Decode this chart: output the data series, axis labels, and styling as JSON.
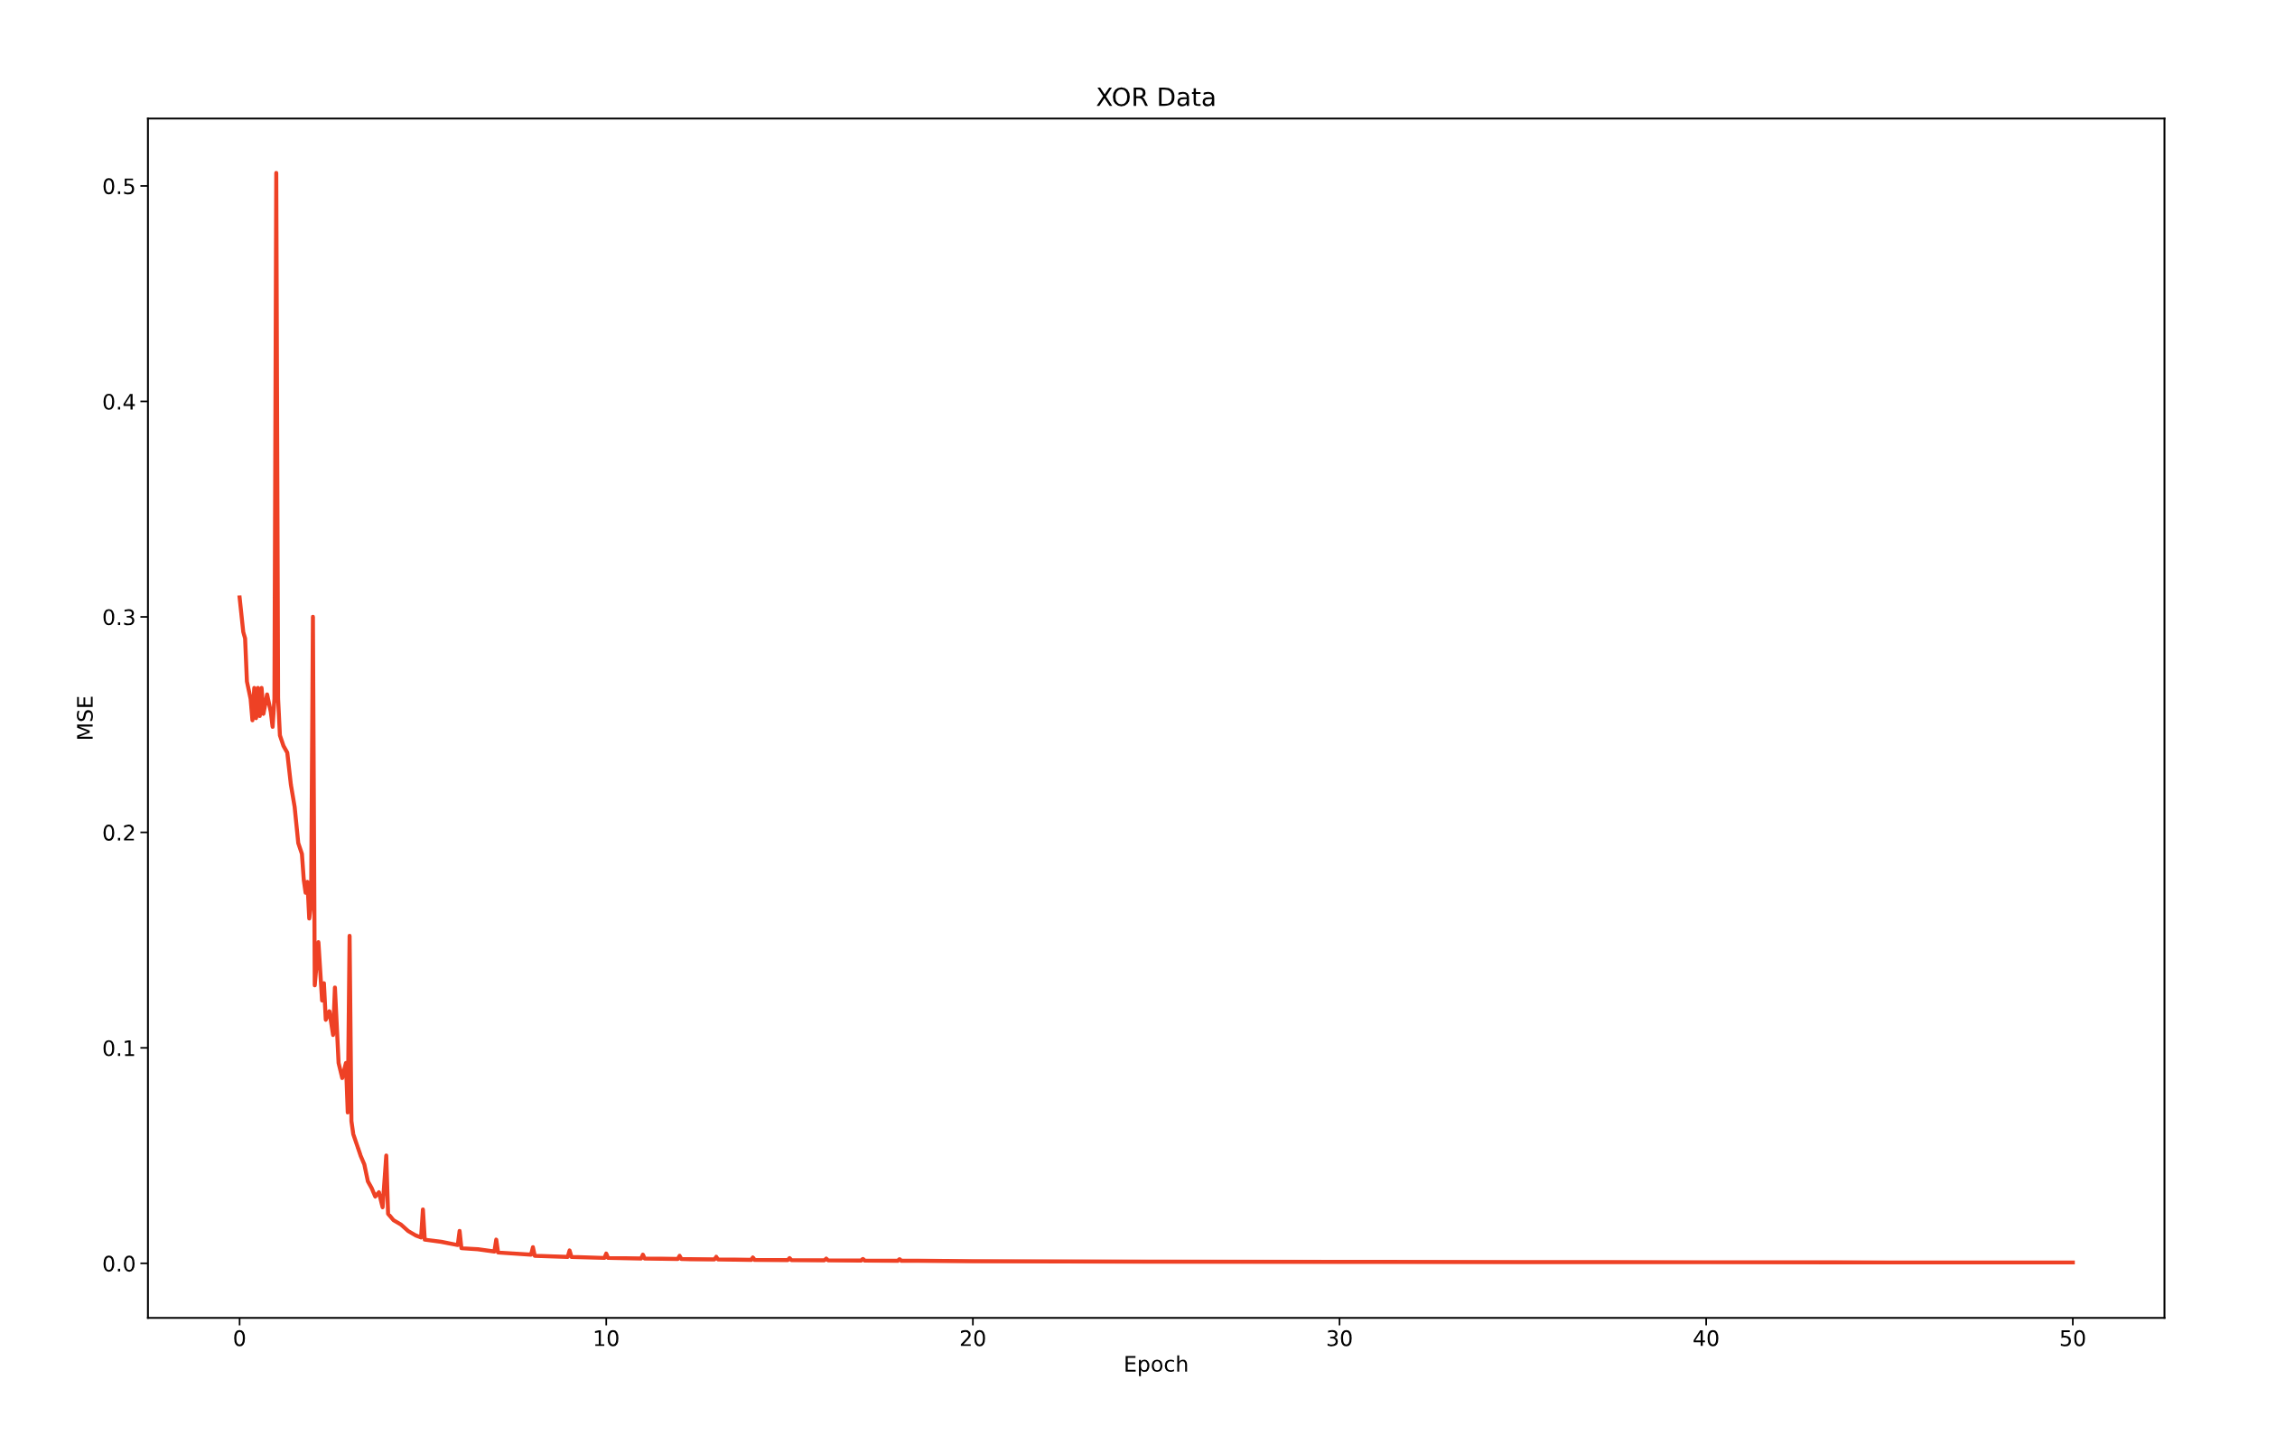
{
  "chart_data": {
    "type": "line",
    "title": "XOR Data",
    "xlabel": "Epoch",
    "ylabel": "MSE",
    "xlim": [
      -2.5,
      52.5
    ],
    "ylim": [
      -0.0253,
      0.5313
    ],
    "xticks": [
      0,
      10,
      20,
      30,
      40,
      50
    ],
    "yticks": [
      {
        "value": 0,
        "label": "0.0"
      },
      0.1,
      0.2,
      0.3,
      0.4,
      0.5
    ],
    "grid": false,
    "marker": "none",
    "line_style": "solid",
    "series": [
      {
        "color": "#ee4125",
        "x": [
          0,
          0.1,
          0.15,
          0.2,
          0.3,
          0.35,
          0.4,
          0.45,
          0.5,
          0.55,
          0.6,
          0.65,
          0.75,
          0.85,
          0.9,
          0.95,
          1.0,
          1.05,
          1.1,
          1.2,
          1.3,
          1.4,
          1.5,
          1.6,
          1.7,
          1.75,
          1.8,
          1.85,
          1.9,
          1.95,
          2.0,
          2.05,
          2.15,
          2.25,
          2.3,
          2.35,
          2.45,
          2.55,
          2.6,
          2.7,
          2.8,
          2.9,
          2.95,
          3.0,
          3.05,
          3.1,
          3.2,
          3.3,
          3.4,
          3.5,
          3.6,
          3.7,
          3.8,
          3.9,
          4.0,
          4.05,
          4.2,
          4.4,
          4.6,
          4.8,
          4.95,
          5.0,
          5.05,
          5.5,
          5.95,
          6.0,
          6.05,
          6.5,
          6.95,
          7.0,
          7.05,
          7.95,
          8.0,
          8.05,
          8.95,
          9.0,
          9.05,
          9.95,
          10.0,
          10.05,
          10.95,
          11.0,
          11.05,
          11.95,
          12.0,
          12.05,
          12.95,
          13.0,
          13.05,
          13.95,
          14.0,
          14.05,
          14.95,
          15.0,
          15.05,
          15.95,
          16.0,
          16.05,
          16.95,
          17.0,
          17.05,
          17.95,
          18.0,
          18.05,
          20,
          25,
          30,
          35,
          40,
          45,
          50
        ],
        "values": [
          0.309,
          0.293,
          0.29,
          0.27,
          0.262,
          0.252,
          0.267,
          0.253,
          0.267,
          0.254,
          0.267,
          0.255,
          0.264,
          0.256,
          0.249,
          0.262,
          0.506,
          0.262,
          0.245,
          0.24,
          0.237,
          0.222,
          0.212,
          0.195,
          0.19,
          0.178,
          0.172,
          0.177,
          0.16,
          0.167,
          0.3,
          0.129,
          0.149,
          0.122,
          0.13,
          0.113,
          0.117,
          0.106,
          0.128,
          0.093,
          0.086,
          0.093,
          0.07,
          0.152,
          0.066,
          0.06,
          0.055,
          0.05,
          0.046,
          0.038,
          0.035,
          0.031,
          0.033,
          0.026,
          0.05,
          0.023,
          0.02,
          0.018,
          0.015,
          0.013,
          0.012,
          0.025,
          0.011,
          0.01,
          0.0085,
          0.015,
          0.007,
          0.0065,
          0.0055,
          0.011,
          0.005,
          0.004,
          0.0075,
          0.0035,
          0.003,
          0.006,
          0.003,
          0.0025,
          0.0045,
          0.0025,
          0.0022,
          0.004,
          0.0022,
          0.002,
          0.0035,
          0.002,
          0.0018,
          0.003,
          0.0018,
          0.0016,
          0.0027,
          0.0016,
          0.0015,
          0.0024,
          0.0015,
          0.0014,
          0.0022,
          0.0014,
          0.0013,
          0.002,
          0.0013,
          0.0012,
          0.0019,
          0.0012,
          0.001,
          0.0008,
          0.0007,
          0.0006,
          0.0005,
          0.0004,
          0.0004
        ]
      }
    ]
  }
}
